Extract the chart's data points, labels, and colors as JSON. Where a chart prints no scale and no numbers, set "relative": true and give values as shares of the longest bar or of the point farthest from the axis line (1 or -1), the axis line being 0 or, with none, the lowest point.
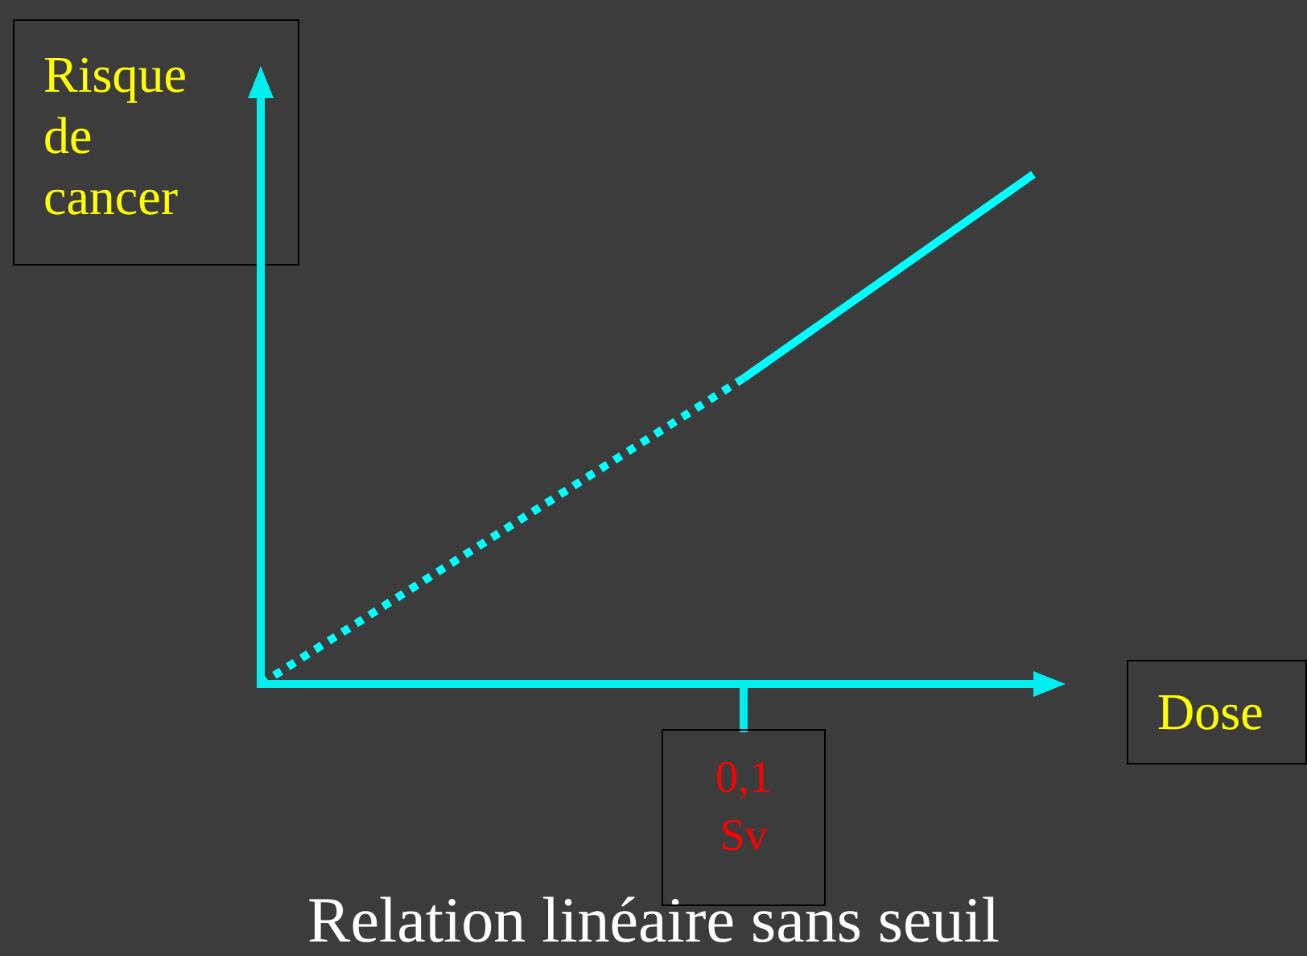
{
  "chart_data": {
    "type": "line",
    "title": "Relation linéaire sans seuil",
    "xlabel": "Dose",
    "ylabel": "Risque de cancer",
    "relative": true,
    "marker": "none",
    "legend": false,
    "annotations": [
      "0,1 Sv"
    ],
    "categories": [
      null,
      null,
      null,
      null,
      null,
      null,
      null,
      null,
      null
    ],
    "series": [
      {
        "type": "line",
        "color": "#00ffff",
        "line_style": "dotted",
        "values": [
          0,
          null,
          null,
          null,
          null,
          0.6,
          null,
          null,
          null
        ]
      },
      {
        "type": "line",
        "color": "#00ffff",
        "line_style": "solid",
        "values": [
          null,
          null,
          null,
          null,
          null,
          0.6,
          null,
          null,
          1
        ]
      }
    ]
  }
}
